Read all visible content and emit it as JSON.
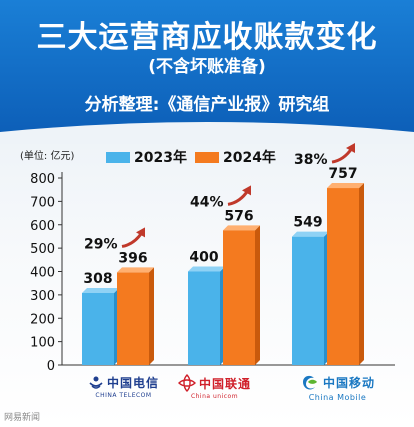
{
  "header": {
    "title": "三大运营商应收账款变化",
    "subtitle": "(不含坏账准备)",
    "source": "分析整理:《通信产业报》研究组"
  },
  "unit_label": "(单位: 亿元)",
  "legend": [
    {
      "name": "2023年",
      "color": "#4ab3ea"
    },
    {
      "name": "2024年",
      "color": "#f47a1f"
    }
  ],
  "operators": [
    {
      "cn": "中国电信",
      "en": "CHINA TELECOM",
      "color": "#1f3f8f"
    },
    {
      "cn": "中国联通",
      "en": "China unicom",
      "color": "#d0202a"
    },
    {
      "cn": "中国移动",
      "en": "China Mobile",
      "color": "#1a78c2"
    }
  ],
  "credit": "网易新闻",
  "chart_data": {
    "type": "bar",
    "categories": [
      "中国电信",
      "中国联通",
      "中国移动"
    ],
    "series": [
      {
        "name": "2023年",
        "values": [
          308,
          400,
          549
        ]
      },
      {
        "name": "2024年",
        "values": [
          396,
          576,
          757
        ]
      }
    ],
    "growth_labels": [
      "29%",
      "44%",
      "38%"
    ],
    "y_ticks": [
      "0",
      "100",
      "200",
      "300",
      "400",
      "500",
      "600",
      "700",
      "800"
    ],
    "ylim": [
      0,
      800
    ],
    "grid": false,
    "legend_position": "top"
  }
}
